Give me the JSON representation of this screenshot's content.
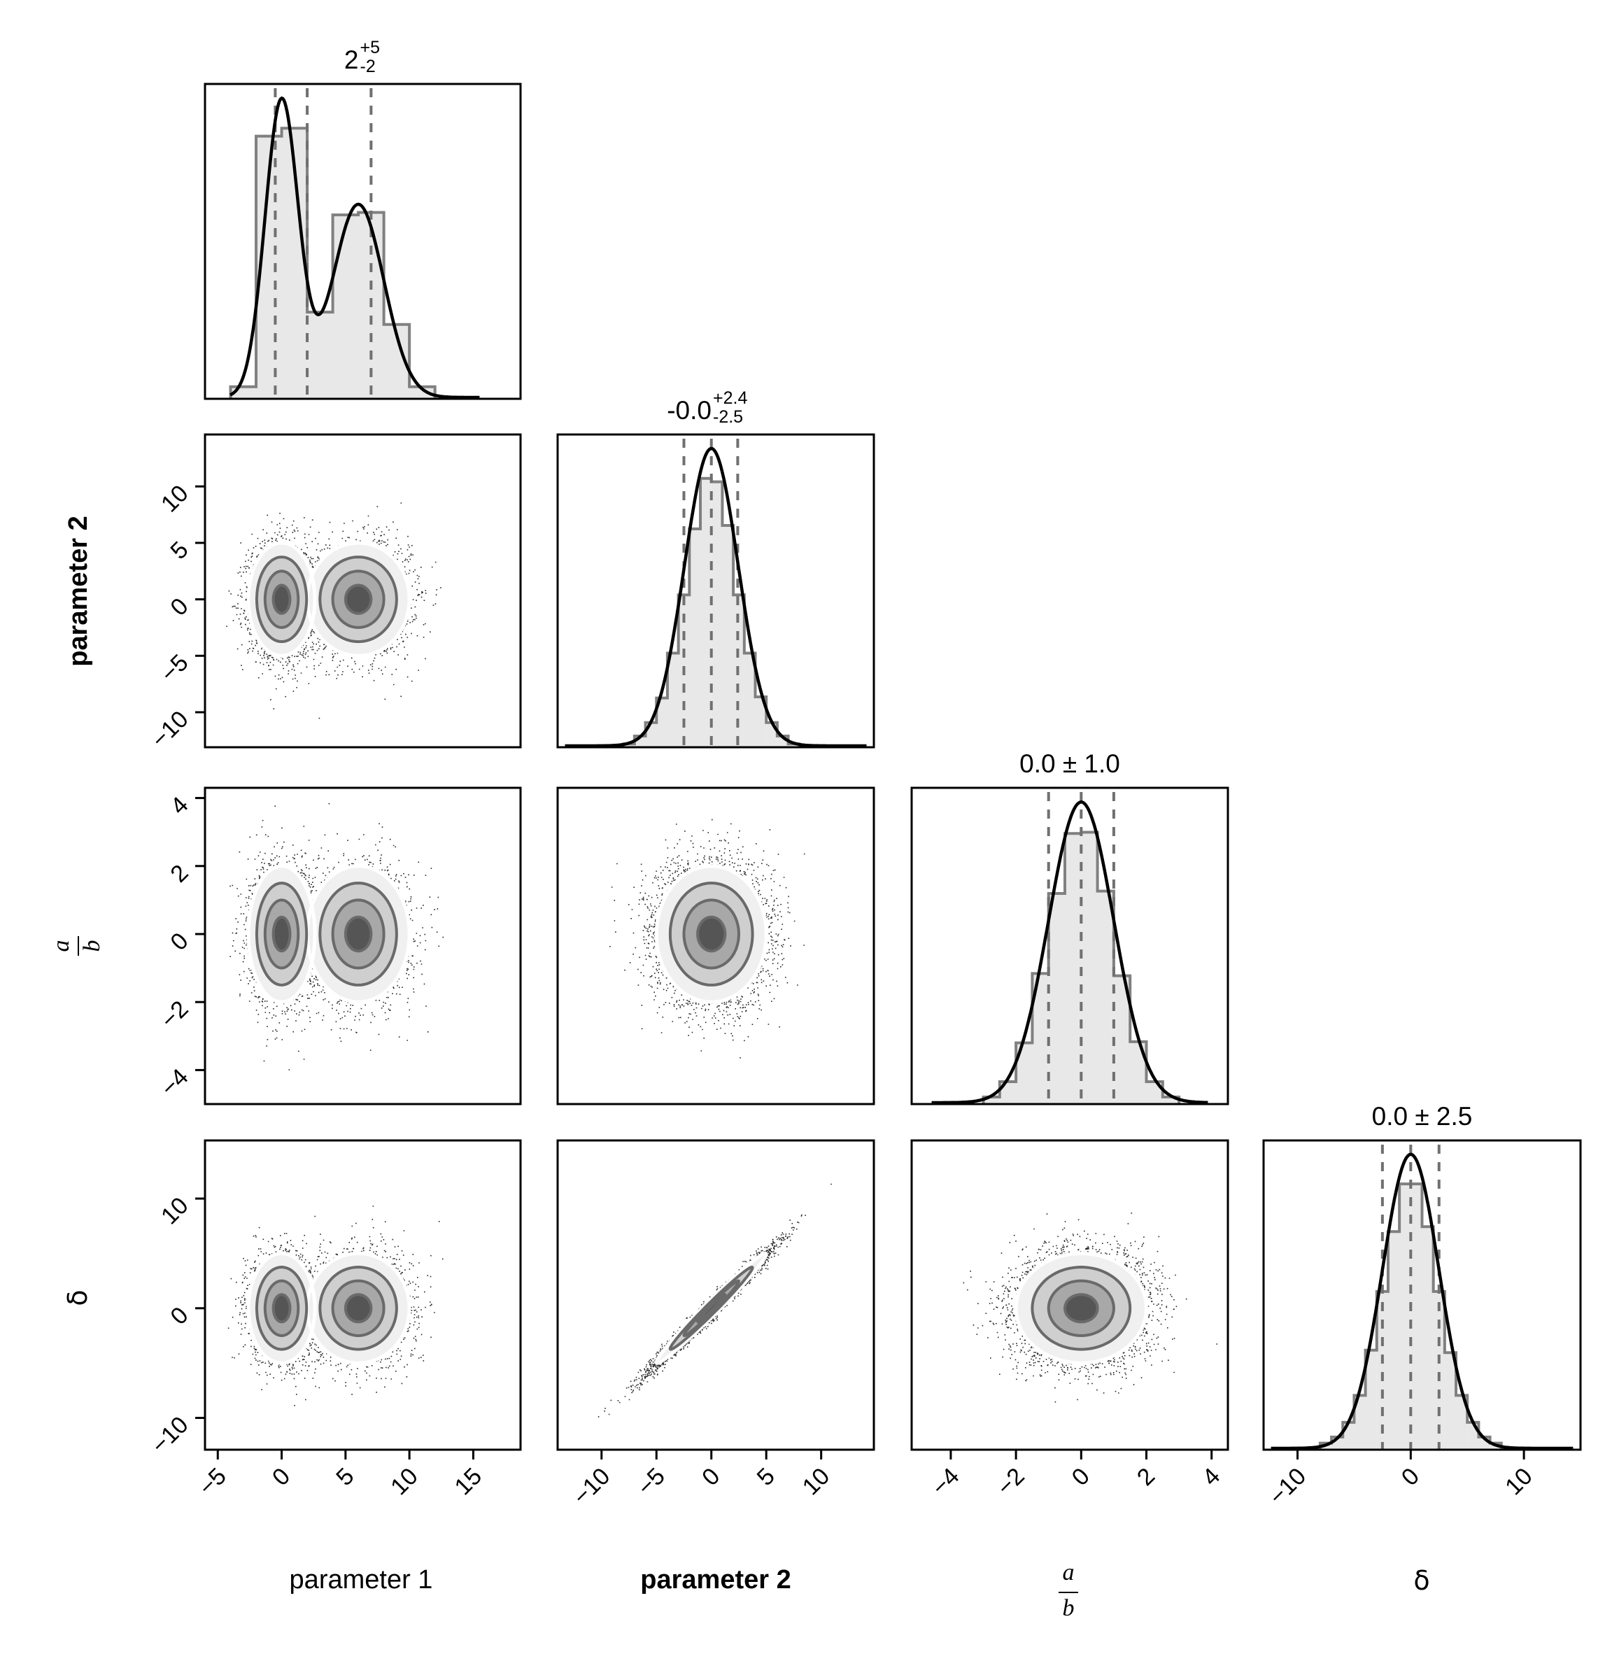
{
  "chart_data": {
    "type": "corner",
    "parameters": [
      {
        "key": "p1",
        "label": "parameter 1",
        "label_style": "normal",
        "label_color": "#000000"
      },
      {
        "key": "p2",
        "label": "parameter 2",
        "label_style": "bold",
        "label_color": "#0000FF"
      },
      {
        "key": "ab",
        "label": "a/b",
        "label_numerator": "a",
        "label_denominator": "b",
        "label_style": "math-fraction",
        "label_color": "#000000"
      },
      {
        "key": "delta",
        "label": "δ",
        "label_style": "normal",
        "label_color": "#000000"
      }
    ],
    "xlim": [
      [
        -6.0,
        18.7
      ],
      [
        -14.0,
        14.8
      ],
      [
        -5.2,
        4.5
      ],
      [
        -13.0,
        15.0
      ]
    ],
    "ylim": [
      null,
      [
        -13.1,
        14.6
      ],
      [
        -5.0,
        4.3
      ],
      [
        -12.9,
        15.3
      ]
    ],
    "xticks": [
      [
        -5,
        0,
        5,
        10,
        15
      ],
      [
        -10,
        -5,
        0,
        5,
        10
      ],
      [
        -4,
        -2,
        0,
        2,
        4
      ],
      [
        -10,
        0,
        10
      ]
    ],
    "xtick_labels": [
      [
        "−5",
        "0",
        "5",
        "10",
        "15"
      ],
      [
        "−10",
        "−5",
        "0",
        "5",
        "10"
      ],
      [
        "−4",
        "−2",
        "0",
        "2",
        "4"
      ],
      [
        "−10",
        "0",
        "10"
      ]
    ],
    "yticks": [
      null,
      [
        -10,
        -5,
        0,
        5,
        10
      ],
      [
        -4,
        -2,
        0,
        2,
        4
      ],
      [
        -10,
        0,
        10
      ]
    ],
    "ytick_labels": [
      null,
      [
        "−10",
        "−5",
        "0",
        "5",
        "10"
      ],
      [
        "−4",
        "−2",
        "0",
        "2",
        "4"
      ],
      [
        "−10",
        "0",
        "10"
      ]
    ],
    "diagonal": [
      {
        "title_main": "2",
        "title_plus": "+5",
        "title_minus": "-2",
        "title_plain": null,
        "quantiles": [
          -0.5,
          2.0,
          7.0
        ],
        "bin_edges": [
          -4,
          -2,
          0,
          2,
          4,
          6,
          8,
          10,
          12
        ],
        "counts": [
          50,
          1085,
          1118,
          358,
          760,
          770,
          307,
          50
        ],
        "kde": {
          "components": [
            {
              "weight": 0.5,
              "mean": 0.0,
              "sd": 1.3
            },
            {
              "weight": 0.5,
              "mean": 6.0,
              "sd": 2.0
            }
          ]
        },
        "kde_peak_rel": 0.955
      },
      {
        "title_main": "-0.0",
        "title_plus": "+2.4",
        "title_minus": "-2.5",
        "title_plain": null,
        "quantiles": [
          -2.5,
          0.0,
          2.4
        ],
        "bin_edges": [
          -9,
          -8,
          -7,
          -6,
          -5,
          -4,
          -3,
          -2,
          -1,
          0,
          1,
          2,
          3,
          4,
          5,
          6,
          7,
          8
        ],
        "counts": [
          5,
          15,
          50,
          110,
          220,
          420,
          680,
          975,
          1200,
          1185,
          990,
          680,
          420,
          225,
          110,
          50,
          15
        ],
        "kde": {
          "components": [
            {
              "weight": 1.0,
              "mean": 0.0,
              "sd": 2.45
            }
          ]
        },
        "kde_peak_rel": 0.955
      },
      {
        "title_main": null,
        "title_plus": null,
        "title_minus": null,
        "title_plain": "0.0 ± 1.0",
        "quantiles": [
          -1.0,
          0.0,
          1.0
        ],
        "bin_edges": [
          -3.0,
          -2.5,
          -2.0,
          -1.5,
          -1.0,
          -0.5,
          0.0,
          0.5,
          1.0,
          1.5,
          2.0,
          2.5,
          3.0
        ],
        "counts": [
          30,
          95,
          260,
          555,
          895,
          1150,
          1155,
          905,
          545,
          265,
          95,
          30
        ],
        "kde": {
          "components": [
            {
              "weight": 1.0,
              "mean": 0.0,
              "sd": 1.0
            }
          ]
        },
        "kde_peak_rel": 0.95
      },
      {
        "title_main": null,
        "title_plus": null,
        "title_minus": null,
        "title_plain": "0.0 ± 2.5",
        "quantiles": [
          -2.5,
          0.0,
          2.5
        ],
        "bin_edges": [
          -9,
          -8,
          -7,
          -6,
          -5,
          -4,
          -3,
          -2,
          -1,
          0,
          1,
          2,
          3,
          4,
          5,
          6,
          7,
          8,
          9
        ],
        "counts": [
          7,
          27,
          52,
          112,
          222,
          407,
          647,
          892,
          1087,
          1087,
          912,
          647,
          397,
          222,
          112,
          52,
          27,
          7
        ],
        "kde": {
          "components": [
            {
              "weight": 1.0,
              "mean": 0.0,
              "sd": 2.5
            }
          ]
        },
        "kde_peak_rel": 0.955
      }
    ],
    "pairs": [
      {
        "row": 1,
        "col": 0,
        "shape": "bimodal",
        "modes": [
          {
            "x": 0.0,
            "y": 0.0,
            "sx": 1.3,
            "sy": 2.5
          },
          {
            "x": 6.0,
            "y": 0.0,
            "sx": 2.0,
            "sy": 2.5
          }
        ],
        "corr": 0.0
      },
      {
        "row": 2,
        "col": 0,
        "shape": "bimodal",
        "modes": [
          {
            "x": 0.0,
            "y": 0.0,
            "sx": 1.3,
            "sy": 1.0
          },
          {
            "x": 6.0,
            "y": 0.0,
            "sx": 2.0,
            "sy": 1.0
          }
        ],
        "corr": 0.0
      },
      {
        "row": 2,
        "col": 1,
        "shape": "gaussian",
        "modes": [
          {
            "x": 0.0,
            "y": 0.0,
            "sx": 2.5,
            "sy": 1.0
          }
        ],
        "corr": 0.0
      },
      {
        "row": 3,
        "col": 0,
        "shape": "bimodal",
        "modes": [
          {
            "x": 0.0,
            "y": 0.0,
            "sx": 1.3,
            "sy": 2.5
          },
          {
            "x": 6.0,
            "y": 0.0,
            "sx": 2.0,
            "sy": 2.5
          }
        ],
        "corr": 0.0
      },
      {
        "row": 3,
        "col": 1,
        "shape": "gaussian",
        "modes": [
          {
            "x": 0.0,
            "y": 0.0,
            "sx": 2.5,
            "sy": 2.5
          }
        ],
        "corr": 0.985
      },
      {
        "row": 3,
        "col": 2,
        "shape": "gaussian",
        "modes": [
          {
            "x": 0.0,
            "y": 0.0,
            "sx": 1.0,
            "sy": 2.5
          }
        ],
        "corr": 0.0
      }
    ],
    "contour_levels_sigma": [
      0.5,
      1.0,
      1.5,
      2.0
    ],
    "colors": {
      "hist_fill": "#e8e8e8",
      "hist_step": "#808080",
      "quantile_line": "#707070",
      "kde_line": "#000000",
      "contour": "#6a6a6a",
      "points": "#000000",
      "hex_dark": "#303030",
      "hex_light": "#f2f2f2"
    }
  }
}
